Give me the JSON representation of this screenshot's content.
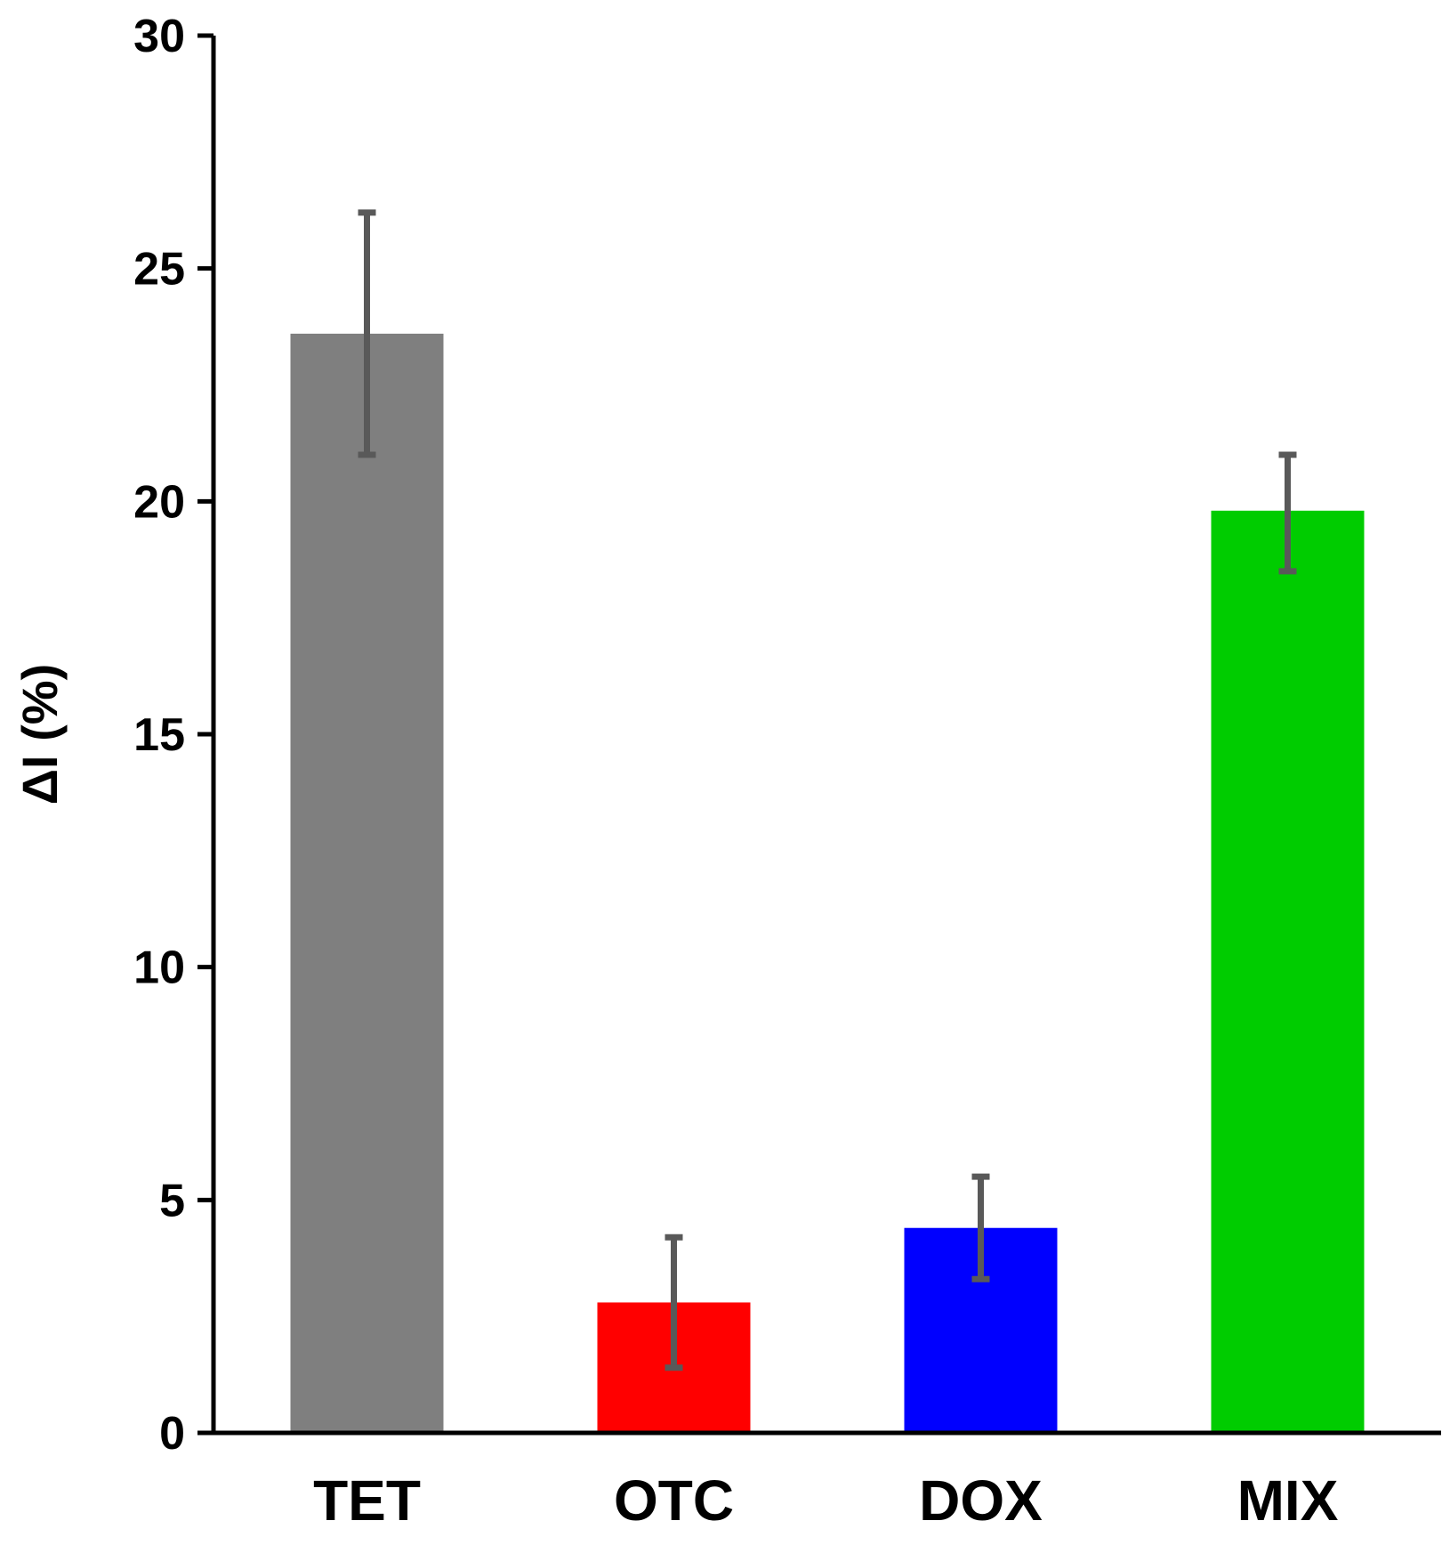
{
  "chart_data": {
    "type": "bar",
    "title": "",
    "xlabel": "",
    "ylabel": "ΔI (%)",
    "ylim": [
      0,
      30
    ],
    "yticks": [
      0,
      5,
      10,
      15,
      20,
      25,
      30
    ],
    "ytick_labels": [
      "0",
      "5",
      "10",
      "15",
      "20",
      "25",
      "30"
    ],
    "categories": [
      "TET",
      "OTC",
      "DOX",
      "MIX"
    ],
    "values": [
      23.6,
      2.8,
      4.4,
      19.8
    ],
    "error_low": [
      21.0,
      1.4,
      3.3,
      18.5
    ],
    "error_high": [
      26.2,
      4.2,
      5.5,
      21.0
    ],
    "colors": [
      "#7f7f7f",
      "#ff0000",
      "#0000ff",
      "#00cc00"
    ],
    "error_bar_color": "#595959",
    "grid": false,
    "legend": "none"
  }
}
